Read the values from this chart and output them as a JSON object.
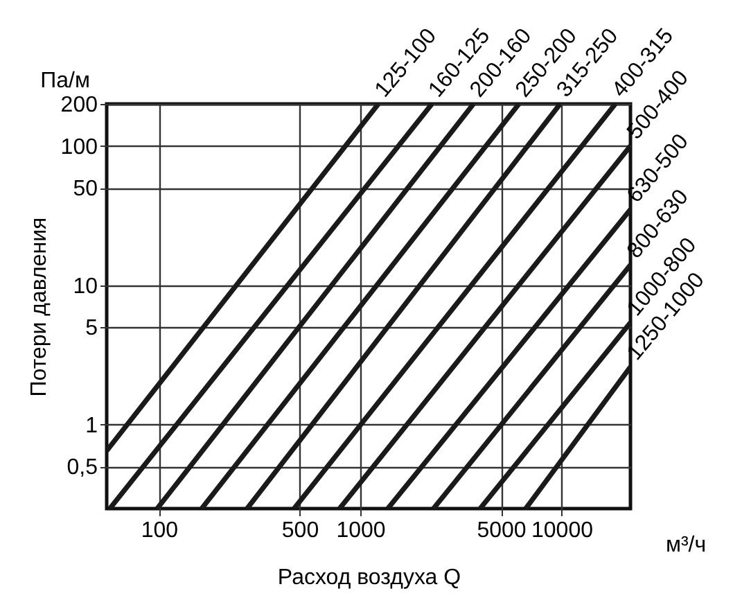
{
  "chart_data": {
    "type": "line",
    "xlabel": "Расход воздуха Q",
    "ylabel": "Потери давления",
    "annotations": [
      "Па/м",
      "м³/ч"
    ],
    "log": "xy",
    "grid": true,
    "legend": false,
    "marker": "none",
    "line_style": "solid",
    "xlim": [
      55,
      22000
    ],
    "xticks": [
      100,
      500,
      1000,
      5000,
      10000
    ],
    "ylim": [
      0.25,
      200
    ],
    "yticks": [
      {
        "value": 0.5,
        "label": "0,5"
      },
      1,
      5,
      10,
      50,
      100,
      200
    ],
    "series": [
      {
        "name": "125-100",
        "color": "#1a1a1a",
        "x": [
          55,
          1230
        ],
        "values": [
          0.65,
          200
        ]
      },
      {
        "name": "160-125",
        "color": "#1a1a1a",
        "x": [
          57,
          2270
        ],
        "values": [
          0.25,
          200
        ]
      },
      {
        "name": "200-160",
        "color": "#1a1a1a",
        "x": [
          98,
          3650
        ],
        "values": [
          0.25,
          200
        ]
      },
      {
        "name": "250-200",
        "color": "#1a1a1a",
        "x": [
          163,
          6140
        ],
        "values": [
          0.25,
          200
        ]
      },
      {
        "name": "315-250",
        "color": "#1a1a1a",
        "x": [
          274,
          9840
        ],
        "values": [
          0.25,
          200
        ]
      },
      {
        "name": "400-315",
        "color": "#1a1a1a",
        "x": [
          469,
          18500
        ],
        "values": [
          0.25,
          200
        ]
      },
      {
        "name": "500-400",
        "color": "#1a1a1a",
        "x": [
          789,
          22000
        ],
        "values": [
          0.25,
          100
        ]
      },
      {
        "name": "630-500",
        "color": "#1a1a1a",
        "x": [
          1370,
          22000
        ],
        "values": [
          0.25,
          35
        ]
      },
      {
        "name": "800-630",
        "color": "#1a1a1a",
        "x": [
          2310,
          22000
        ],
        "values": [
          0.25,
          14
        ]
      },
      {
        "name": "1000-800",
        "color": "#1a1a1a",
        "x": [
          3940,
          22000
        ],
        "values": [
          0.25,
          5.4
        ]
      },
      {
        "name": "1250-1000",
        "color": "#1a1a1a",
        "x": [
          6640,
          22000
        ],
        "values": [
          0.25,
          2.6
        ]
      }
    ]
  }
}
